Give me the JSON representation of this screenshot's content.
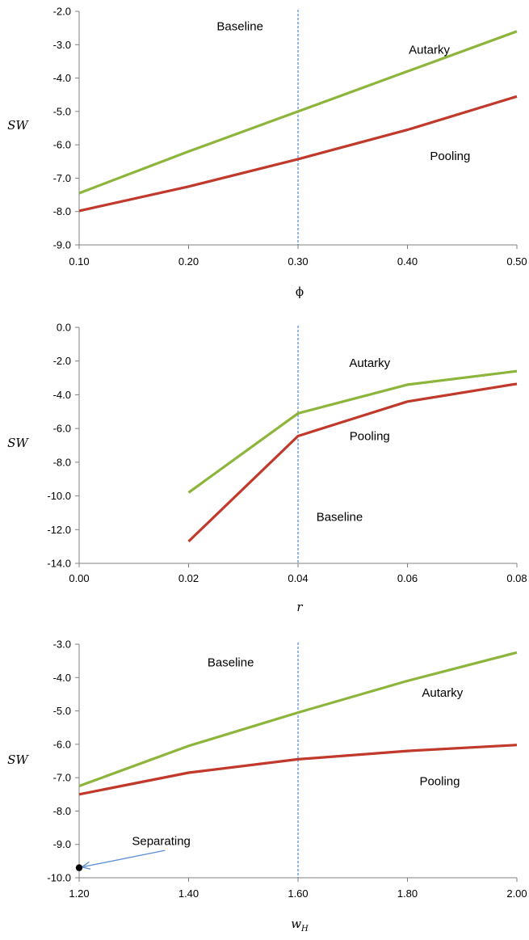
{
  "colors": {
    "autarky": "#8db53b",
    "pooling": "#c0392b",
    "baseline": "#2f6fd0",
    "axis": "#808080",
    "arrow": "#5b8fd6",
    "point": "#000000"
  },
  "chart_data": [
    {
      "type": "line",
      "ylabel": "SW",
      "xlabel": "ϕ",
      "xlim": [
        0.1,
        0.5
      ],
      "ylim": [
        -9.0,
        -2.0
      ],
      "xticks": [
        "0.10",
        "0.20",
        "0.30",
        "0.40",
        "0.50"
      ],
      "xtick_values": [
        0.1,
        0.2,
        0.3,
        0.4,
        0.5
      ],
      "yticks": [
        "-2.0",
        "-3.0",
        "-4.0",
        "-5.0",
        "-6.0",
        "-7.0",
        "-8.0",
        "-9.0"
      ],
      "ytick_values": [
        -2,
        -3,
        -4,
        -5,
        -6,
        -7,
        -8,
        -9
      ],
      "baseline": {
        "x": 0.3,
        "label": "Baseline"
      },
      "series": [
        {
          "name": "Autarky",
          "color_key": "autarky",
          "x": [
            0.1,
            0.2,
            0.3,
            0.4,
            0.5
          ],
          "y": [
            -7.45,
            -6.2,
            -5.0,
            -3.8,
            -2.6
          ]
        },
        {
          "name": "Pooling",
          "color_key": "pooling",
          "x": [
            0.1,
            0.2,
            0.3,
            0.4,
            0.5
          ],
          "y": [
            -7.98,
            -7.25,
            -6.43,
            -5.55,
            -4.55
          ]
        }
      ],
      "annotations": [
        {
          "text": "Baseline",
          "x": 0.247,
          "y": -2.45
        },
        {
          "text": "Autarky",
          "x": 0.42,
          "y": -3.15
        },
        {
          "text": "Pooling",
          "x": 0.439,
          "y": -6.33
        }
      ]
    },
    {
      "type": "line",
      "ylabel": "SW",
      "xlabel": "r",
      "xlim": [
        0.0,
        0.08
      ],
      "ylim": [
        -14.0,
        0.0
      ],
      "xticks": [
        "0.00",
        "0.02",
        "0.04",
        "0.06",
        "0.08"
      ],
      "xtick_values": [
        0.0,
        0.02,
        0.04,
        0.06,
        0.08
      ],
      "yticks": [
        "0.0",
        "-2.0",
        "-4.0",
        "-6.0",
        "-8.0",
        "-10.0",
        "-12.0",
        "-14.0"
      ],
      "ytick_values": [
        0,
        -2,
        -4,
        -6,
        -8,
        -10,
        -12,
        -14
      ],
      "baseline": {
        "x": 0.04,
        "label": "Baseline"
      },
      "series": [
        {
          "name": "Autarky",
          "color_key": "autarky",
          "x": [
            0.02,
            0.04,
            0.06,
            0.08
          ],
          "y": [
            -9.8,
            -5.1,
            -3.4,
            -2.6
          ]
        },
        {
          "name": "Pooling",
          "color_key": "pooling",
          "x": [
            0.02,
            0.04,
            0.06,
            0.08
          ],
          "y": [
            -12.7,
            -6.45,
            -4.4,
            -3.35
          ]
        }
      ],
      "annotations": [
        {
          "text": "Autarky",
          "x": 0.0531,
          "y": -2.1
        },
        {
          "text": "Pooling",
          "x": 0.0531,
          "y": -6.45
        },
        {
          "text": "Baseline",
          "x": 0.0476,
          "y": -11.25
        }
      ]
    },
    {
      "type": "line",
      "ylabel": "SW",
      "xlabel": "w",
      "xlabel_sub": "H",
      "xlim": [
        1.2,
        2.0
      ],
      "ylim": [
        -10.0,
        -3.0
      ],
      "xticks": [
        "1.20",
        "1.40",
        "1.60",
        "1.80",
        "2.00"
      ],
      "xtick_values": [
        1.2,
        1.4,
        1.6,
        1.8,
        2.0
      ],
      "yticks": [
        "-3.0",
        "-4.0",
        "-5.0",
        "-6.0",
        "-7.0",
        "-8.0",
        "-9.0",
        "-10.0"
      ],
      "ytick_values": [
        -3,
        -4,
        -5,
        -6,
        -7,
        -8,
        -9,
        -10
      ],
      "baseline": {
        "x": 1.6,
        "label": "Baseline"
      },
      "series": [
        {
          "name": "Autarky",
          "color_key": "autarky",
          "x": [
            1.2,
            1.4,
            1.6,
            1.8,
            2.0
          ],
          "y": [
            -7.25,
            -6.05,
            -5.05,
            -4.1,
            -3.25
          ]
        },
        {
          "name": "Pooling",
          "color_key": "pooling",
          "x": [
            1.2,
            1.4,
            1.6,
            1.8,
            2.0
          ],
          "y": [
            -7.5,
            -6.85,
            -6.45,
            -6.2,
            -6.02
          ]
        }
      ],
      "points": [
        {
          "name": "Separating",
          "x": 1.2,
          "y": -9.7
        }
      ],
      "annotations": [
        {
          "text": "Baseline",
          "x": 1.477,
          "y": -3.55
        },
        {
          "text": "Autarky",
          "x": 1.864,
          "y": -4.45
        },
        {
          "text": "Pooling",
          "x": 1.859,
          "y": -7.1
        },
        {
          "text": "Separating",
          "x": 1.35,
          "y": -8.9
        }
      ],
      "arrow": {
        "from": [
          1.357,
          -9.18
        ],
        "to": [
          1.205,
          -9.68
        ]
      }
    }
  ]
}
